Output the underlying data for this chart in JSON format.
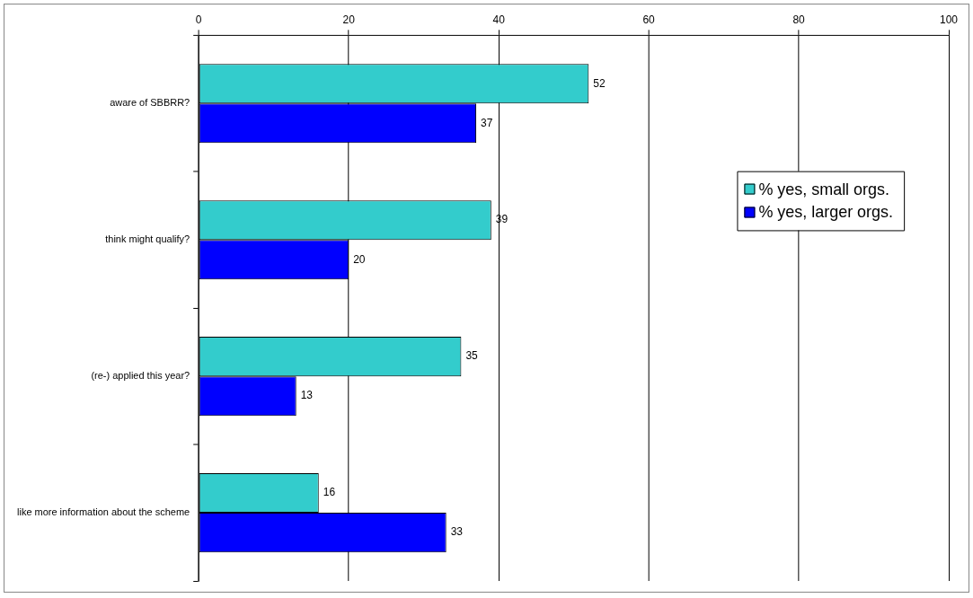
{
  "chart_data": {
    "type": "bar",
    "orientation": "horizontal",
    "categories": [
      "aware of SBBRR?",
      "think might qualify?",
      "(re-) applied this year?",
      "like more information about the scheme"
    ],
    "series": [
      {
        "name": "% yes, small orgs.",
        "color": "#33cccc",
        "values": [
          52,
          39,
          35,
          16
        ]
      },
      {
        "name": "% yes, larger orgs.",
        "color": "#0000ff",
        "values": [
          37,
          20,
          13,
          33
        ]
      }
    ],
    "xlim": [
      0,
      100
    ],
    "xticks": [
      0,
      20,
      40,
      60,
      80,
      100
    ],
    "grid": "x",
    "legend": "right",
    "data_labels": true
  }
}
